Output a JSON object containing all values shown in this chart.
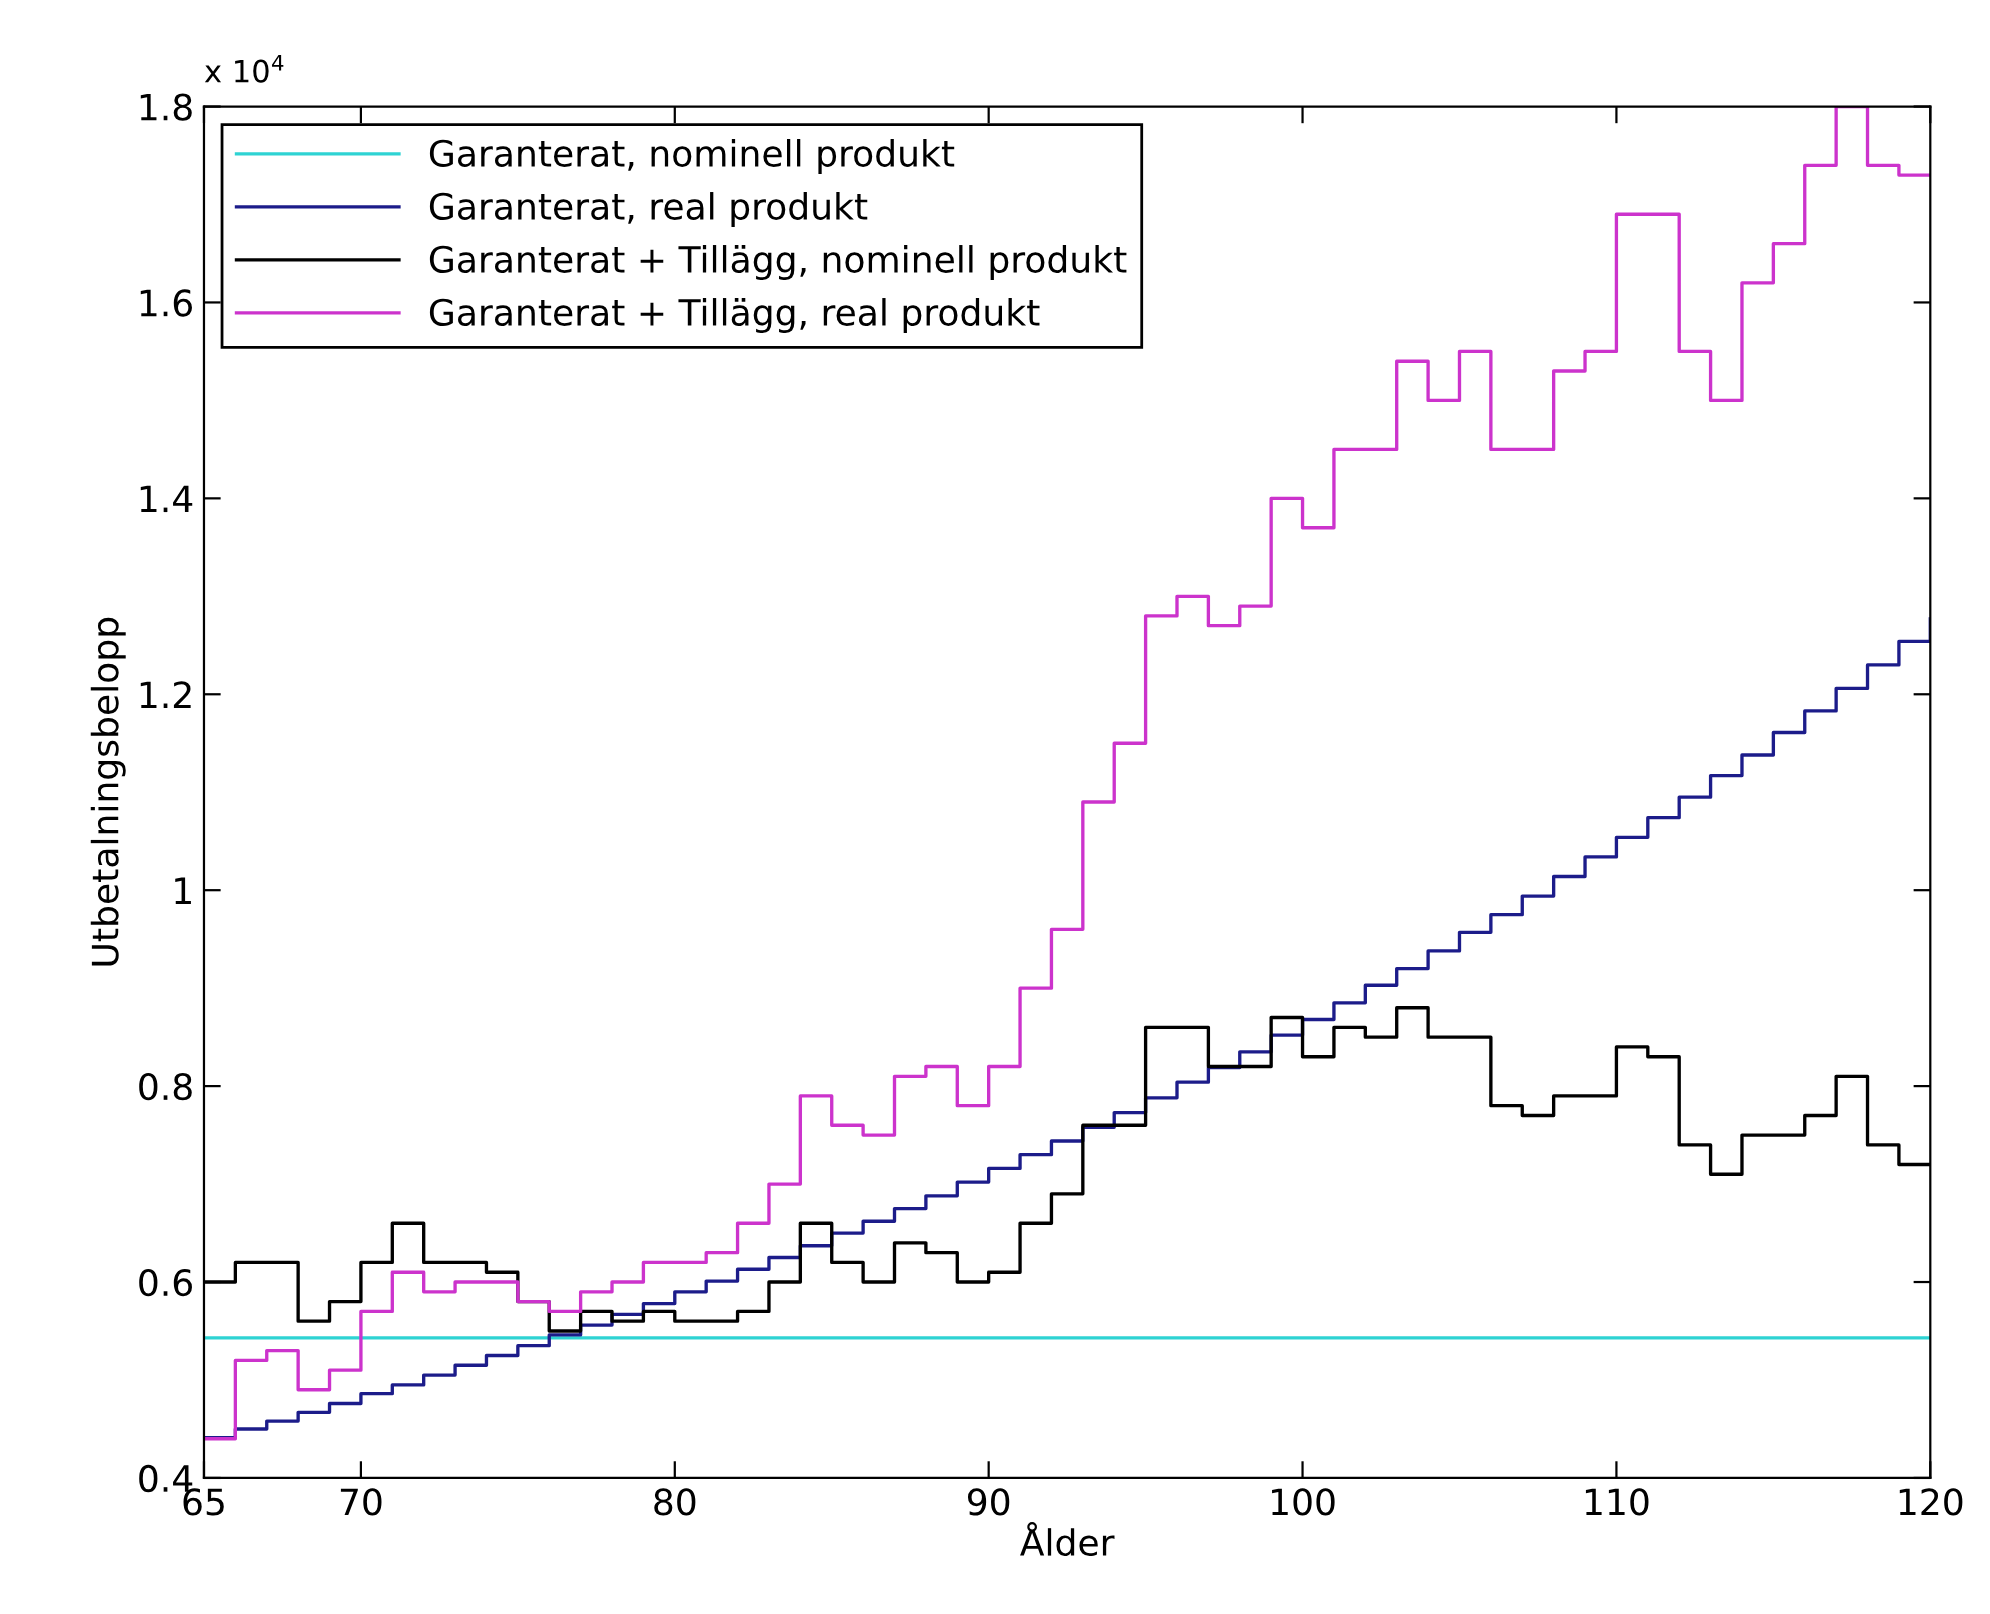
{
  "chart_data": {
    "type": "step",
    "xlabel": "Ålder",
    "ylabel": "Utbetalningsbelopp",
    "annotations": [
      "x 10$^{4}$"
    ],
    "x": [
      65,
      66,
      67,
      68,
      69,
      70,
      71,
      72,
      73,
      74,
      75,
      76,
      77,
      78,
      79,
      80,
      81,
      82,
      83,
      84,
      85,
      86,
      87,
      88,
      89,
      90,
      91,
      92,
      93,
      94,
      95,
      96,
      97,
      98,
      99,
      100,
      101,
      102,
      103,
      104,
      105,
      106,
      107,
      108,
      109,
      110,
      111,
      112,
      113,
      114,
      115,
      116,
      117,
      118,
      119,
      120
    ],
    "series": [
      {
        "name": "Garanterat, nominell produkt",
        "color": "#2ed3d3",
        "values": [
          0.543,
          0.543,
          0.543,
          0.543,
          0.543,
          0.543,
          0.543,
          0.543,
          0.543,
          0.543,
          0.543,
          0.543,
          0.543,
          0.543,
          0.543,
          0.543,
          0.543,
          0.543,
          0.543,
          0.543,
          0.543,
          0.543,
          0.543,
          0.543,
          0.543,
          0.543,
          0.543,
          0.543,
          0.543,
          0.543,
          0.543,
          0.543,
          0.543,
          0.543,
          0.543,
          0.543,
          0.543,
          0.543,
          0.543,
          0.543,
          0.543,
          0.543,
          0.543,
          0.543,
          0.543,
          0.543,
          0.543,
          0.543,
          0.543,
          0.543,
          0.543,
          0.543,
          0.543,
          0.543,
          0.543,
          0.543
        ]
      },
      {
        "name": "Garanterat, real produkt",
        "color": "#1c1c8a",
        "values": [
          0.441,
          0.45,
          0.458,
          0.467,
          0.476,
          0.486,
          0.495,
          0.505,
          0.515,
          0.525,
          0.535,
          0.546,
          0.556,
          0.567,
          0.578,
          0.59,
          0.601,
          0.613,
          0.625,
          0.637,
          0.65,
          0.662,
          0.675,
          0.688,
          0.702,
          0.716,
          0.73,
          0.744,
          0.758,
          0.773,
          0.788,
          0.804,
          0.819,
          0.835,
          0.852,
          0.868,
          0.885,
          0.903,
          0.92,
          0.938,
          0.957,
          0.975,
          0.994,
          1.014,
          1.034,
          1.054,
          1.074,
          1.095,
          1.117,
          1.138,
          1.161,
          1.183,
          1.206,
          1.23,
          1.254,
          1.277
        ]
      },
      {
        "name": "Garanterat + Tillägg, nominell produkt",
        "color": "#000000",
        "values": [
          0.6,
          0.62,
          0.62,
          0.56,
          0.58,
          0.62,
          0.66,
          0.62,
          0.62,
          0.61,
          0.58,
          0.55,
          0.57,
          0.56,
          0.57,
          0.56,
          0.56,
          0.57,
          0.6,
          0.66,
          0.62,
          0.6,
          0.64,
          0.63,
          0.6,
          0.61,
          0.66,
          0.69,
          0.76,
          0.76,
          0.86,
          0.86,
          0.82,
          0.82,
          0.87,
          0.83,
          0.86,
          0.85,
          0.88,
          0.85,
          0.85,
          0.78,
          0.77,
          0.79,
          0.79,
          0.84,
          0.83,
          0.74,
          0.71,
          0.75,
          0.75,
          0.77,
          0.81,
          0.74,
          0.72,
          0.72
        ]
      },
      {
        "name": "Garanterat + Tillägg, real produkt",
        "color": "#cc33cc",
        "values": [
          0.44,
          0.52,
          0.53,
          0.49,
          0.51,
          0.57,
          0.61,
          0.59,
          0.6,
          0.6,
          0.58,
          0.57,
          0.59,
          0.6,
          0.62,
          0.62,
          0.63,
          0.66,
          0.7,
          0.79,
          0.76,
          0.75,
          0.81,
          0.82,
          0.78,
          0.82,
          0.9,
          0.96,
          1.09,
          1.15,
          1.28,
          1.3,
          1.27,
          1.29,
          1.4,
          1.37,
          1.45,
          1.45,
          1.54,
          1.5,
          1.55,
          1.45,
          1.45,
          1.53,
          1.55,
          1.69,
          1.69,
          1.55,
          1.5,
          1.62,
          1.66,
          1.74,
          1.8,
          1.74,
          1.73,
          1.73
        ]
      }
    ],
    "xlim": [
      65,
      120
    ],
    "xticks": [
      65,
      70,
      80,
      90,
      100,
      110,
      120
    ],
    "ylim": [
      0.4,
      1.8
    ],
    "yticks": [
      0.4,
      0.6,
      0.8,
      {
        "value": 1,
        "label": "1"
      },
      1.2,
      1.4,
      1.6,
      1.8
    ],
    "legend": "top left",
    "line_style": "solid"
  }
}
